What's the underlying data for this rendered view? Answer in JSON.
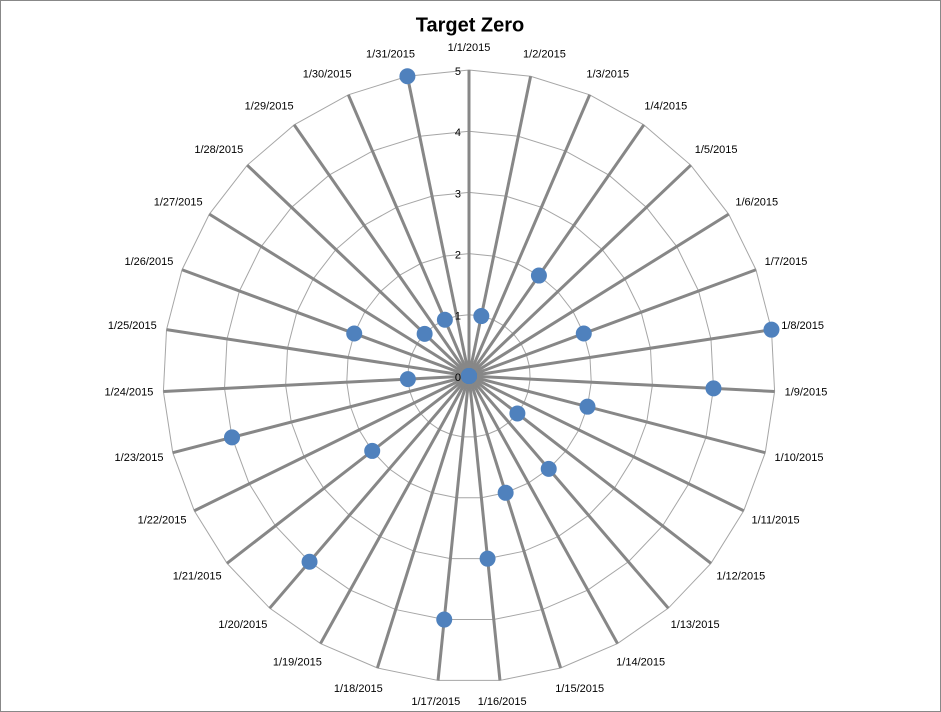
{
  "chart_data": {
    "type": "radar",
    "title": "Target Zero",
    "categories": [
      "1/1/2015",
      "1/2/2015",
      "1/3/2015",
      "1/4/2015",
      "1/5/2015",
      "1/6/2015",
      "1/7/2015",
      "1/8/2015",
      "1/9/2015",
      "1/10/2015",
      "1/11/2015",
      "1/12/2015",
      "1/13/2015",
      "1/14/2015",
      "1/15/2015",
      "1/16/2015",
      "1/17/2015",
      "1/18/2015",
      "1/19/2015",
      "1/20/2015",
      "1/21/2015",
      "1/22/2015",
      "1/23/2015",
      "1/24/2015",
      "1/25/2015",
      "1/26/2015",
      "1/27/2015",
      "1/28/2015",
      "1/29/2015",
      "1/30/2015",
      "1/31/2015"
    ],
    "values": [
      0,
      1,
      0,
      2,
      0,
      0,
      2,
      5,
      4,
      2,
      0,
      1,
      2,
      0,
      2,
      3,
      4,
      0,
      0,
      4,
      2,
      0,
      4,
      1,
      0,
      2,
      0,
      1,
      0,
      1,
      5
    ],
    "color": "#4f81bd",
    "ylim": [
      0,
      5
    ],
    "yticks": [
      0,
      1,
      2,
      3,
      4,
      5
    ],
    "grid": true
  }
}
